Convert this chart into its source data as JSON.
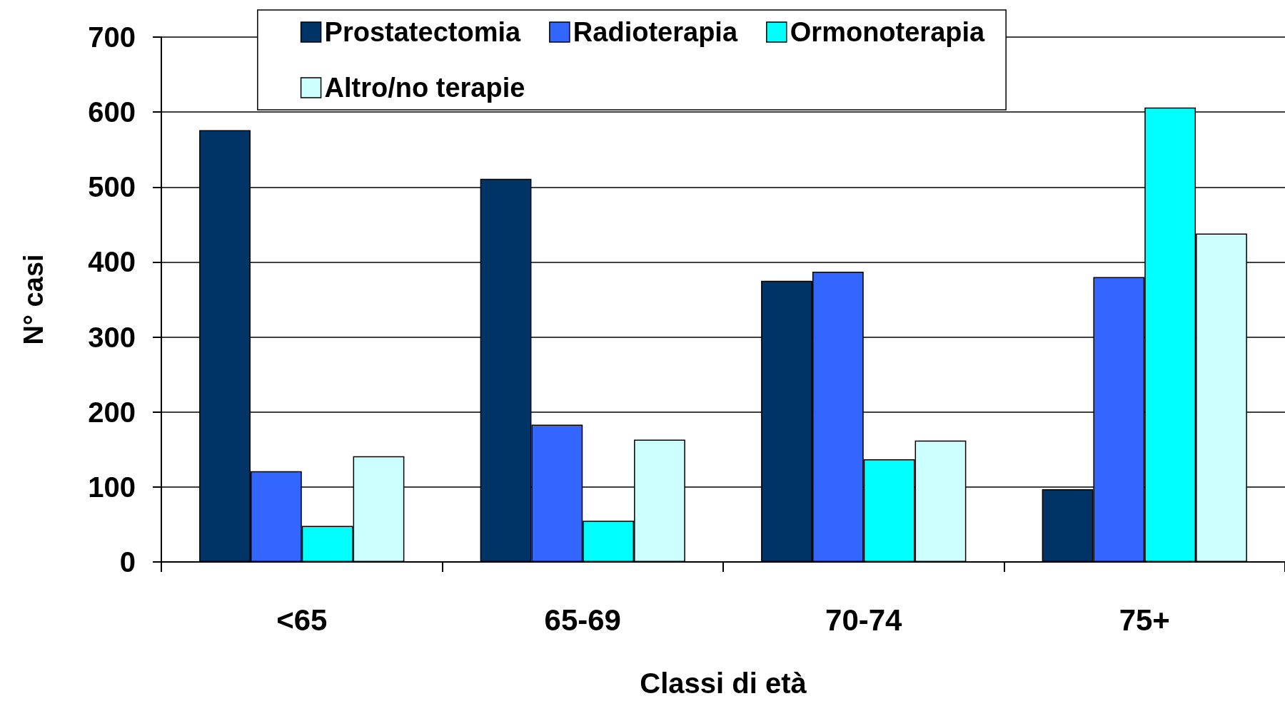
{
  "chart_data": {
    "type": "bar",
    "xlabel": "Classi di età",
    "ylabel": "N° casi",
    "categories": [
      "<65",
      "65-69",
      "70-74",
      "75+"
    ],
    "series": [
      {
        "name": "Prostatectomia",
        "color": "#003366",
        "values": [
          576,
          511,
          375,
          97
        ]
      },
      {
        "name": "Radioterapia",
        "color": "#3366ff",
        "values": [
          121,
          183,
          387,
          380
        ]
      },
      {
        "name": "Ormonoterapia",
        "color": "#00ffff",
        "values": [
          48,
          55,
          137,
          606
        ]
      },
      {
        "name": "Altro/no terapie",
        "color": "#ccffff",
        "values": [
          141,
          163,
          162,
          438
        ]
      }
    ],
    "ylim": [
      0,
      700
    ],
    "yticks": [
      0,
      100,
      200,
      300,
      400,
      500,
      600,
      700
    ],
    "grid": "y",
    "legend": "top"
  }
}
